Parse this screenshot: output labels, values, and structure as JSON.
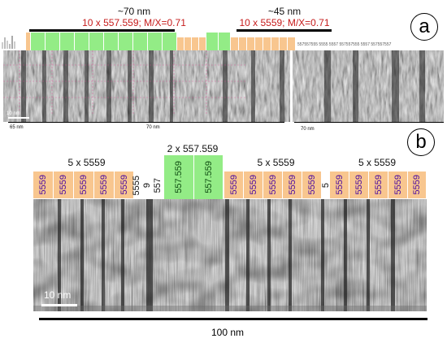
{
  "panel_a": {
    "letter": "a",
    "left_header": {
      "line1": "~70 nm",
      "line2": "10 x 557.559; M/X=0.71"
    },
    "right_header": {
      "line1": "~45 nm",
      "line2": "10 x 5559; M/X=0.71"
    },
    "scale_small": "10 nm",
    "axis_marks": {
      "left": "65 nm",
      "middle": "70 nm",
      "right": "70 nm"
    },
    "right_tiny_labels": "557557555 5555 5557 557557555 5557 557557557"
  },
  "panel_b": {
    "letter": "b",
    "group1_label": "5 x 5559",
    "group2_label": "2 x 557.559",
    "group3_label": "5 x 5559",
    "group4_label": "5 x 5559",
    "unit": "5559",
    "green_unit": "557.559",
    "loose1": "5555",
    "loose2": "9",
    "loose3": "557",
    "loose4": "5",
    "scale_bar": "10 nm",
    "bottom_scale": "100 nm"
  },
  "colors": {
    "orange": "#f8c68f",
    "green": "#93ec86",
    "red_text": "#c61c1c",
    "purple_text": "#4a0aa0"
  }
}
